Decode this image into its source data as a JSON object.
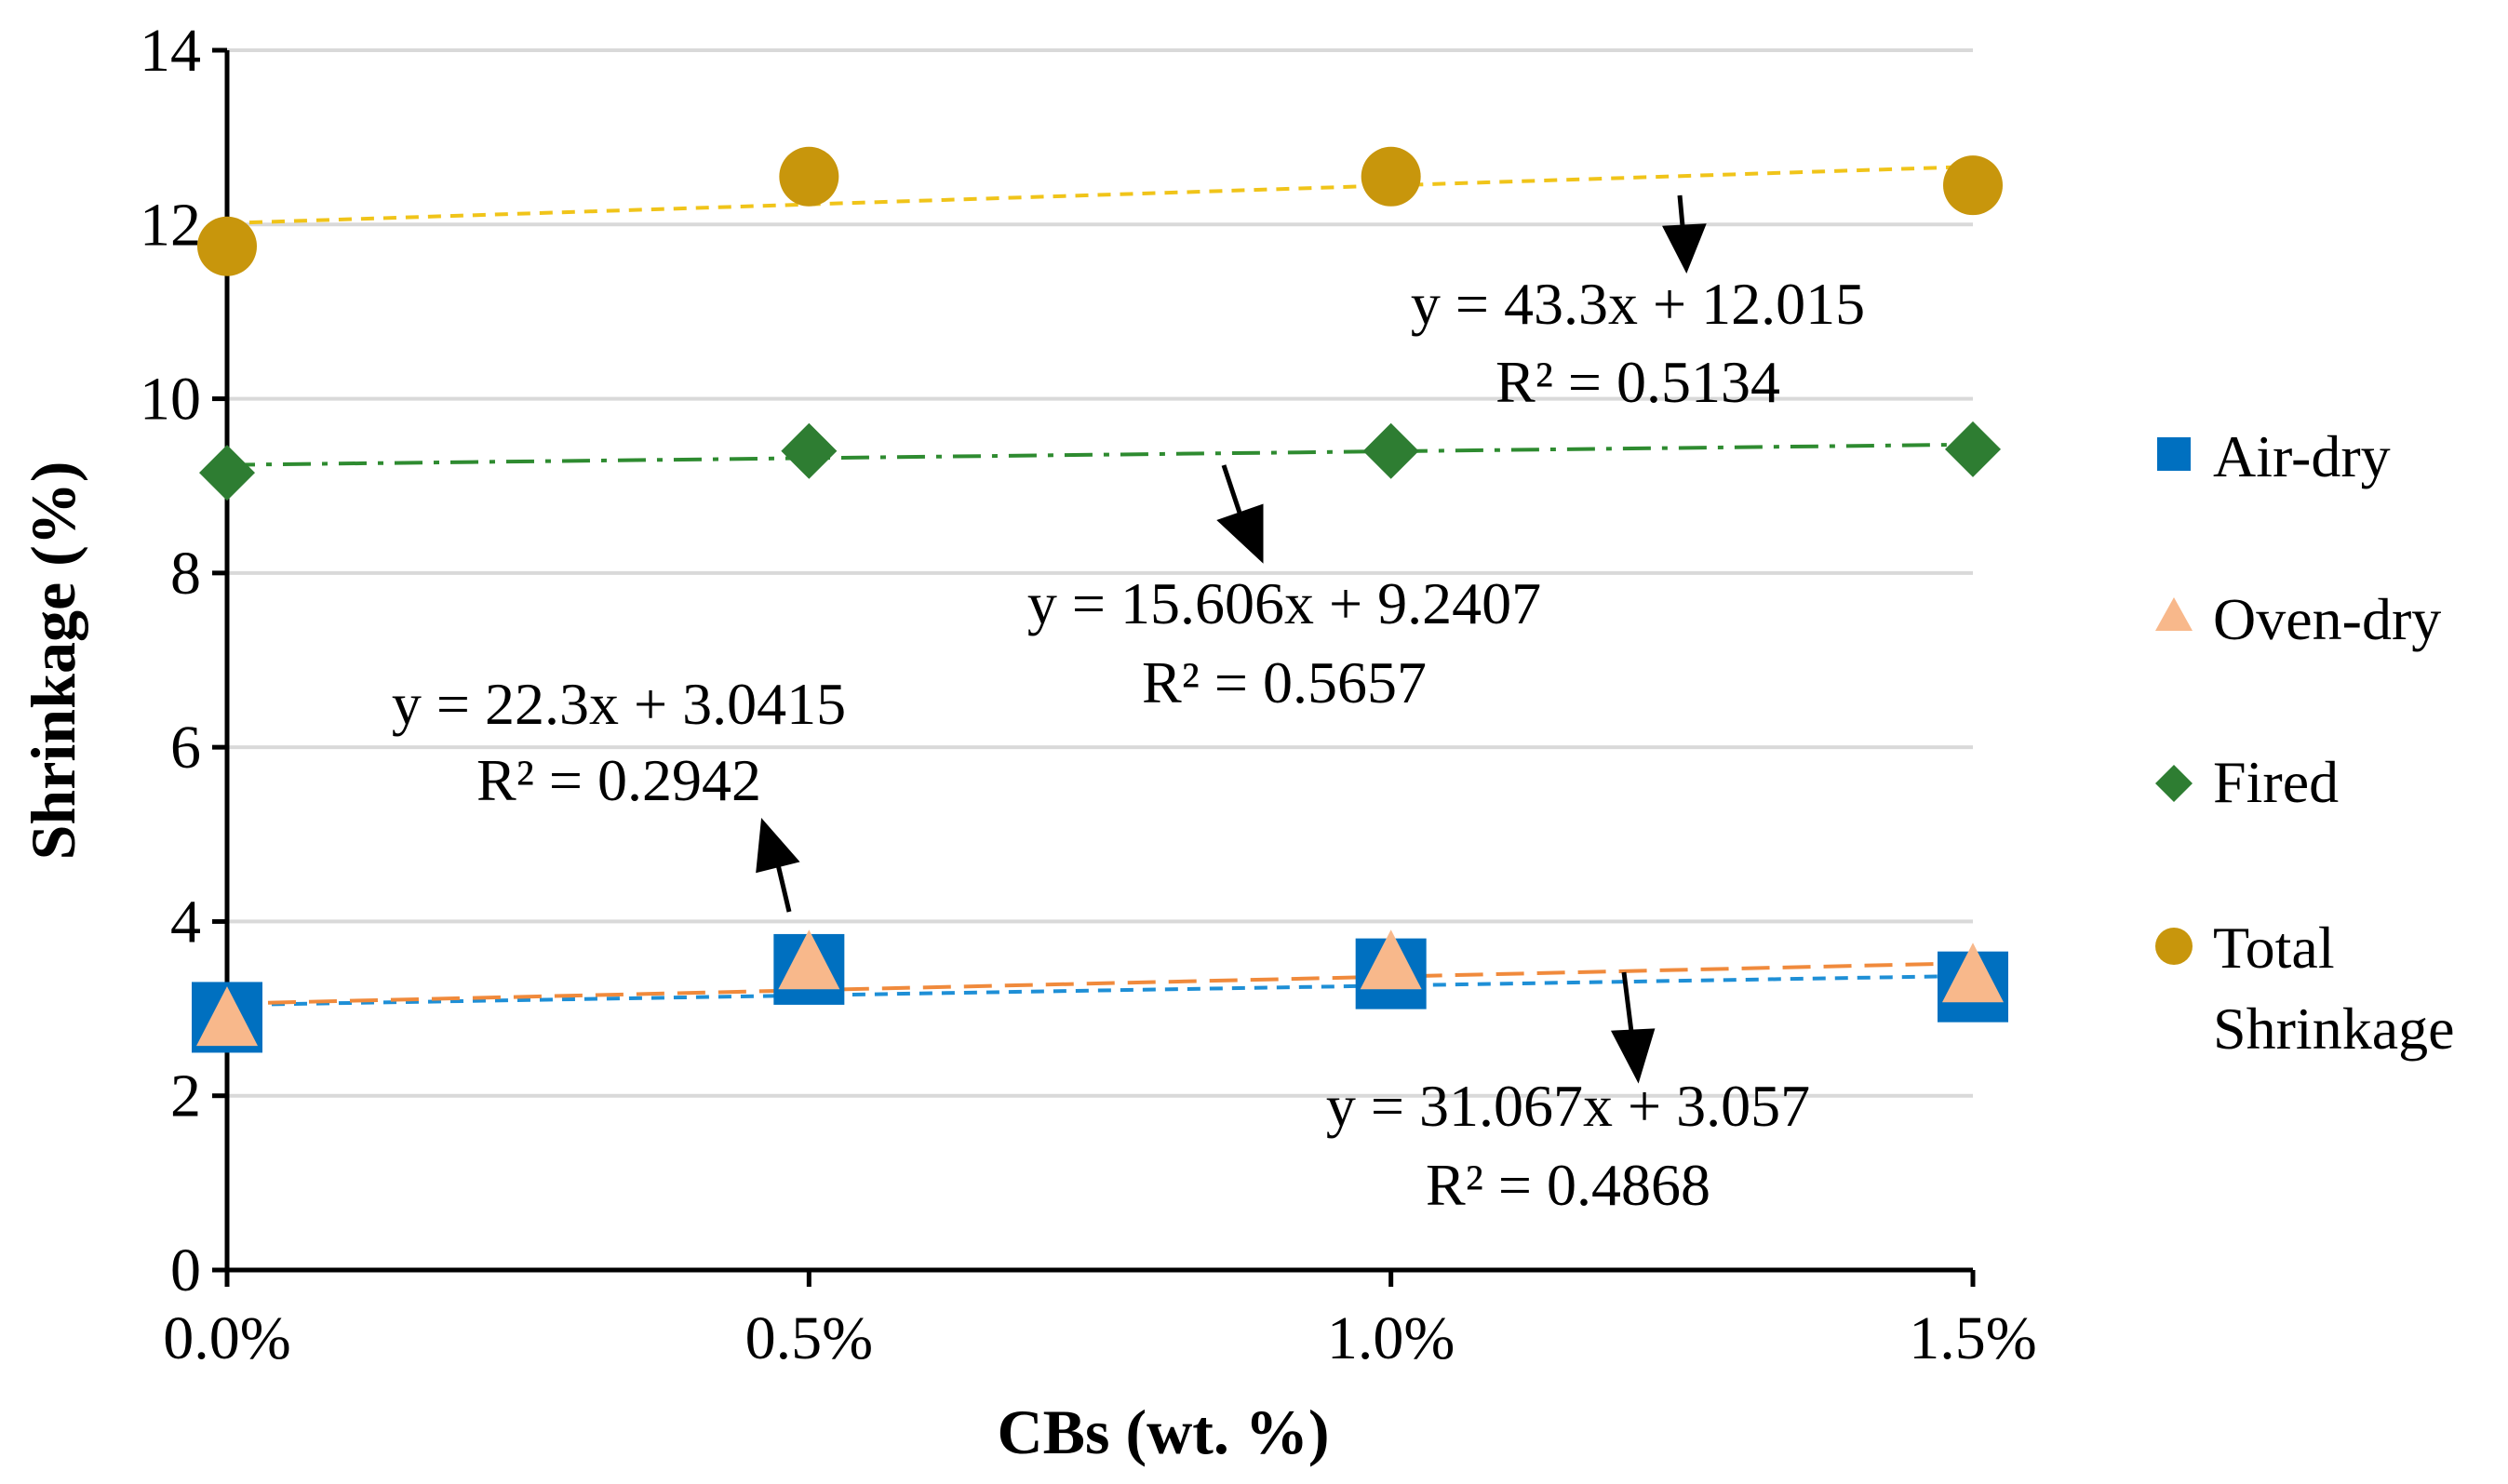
{
  "chart_data": {
    "type": "scatter",
    "title": "",
    "xlabel": "CBs (wt. %)",
    "ylabel": "Shrinkage (%)",
    "x": [
      0.0,
      0.005,
      0.01,
      0.015
    ],
    "x_tick_labels": [
      "0.0%",
      "0.5%",
      "1.0%",
      "1.5%"
    ],
    "xlim": [
      0.0,
      0.015
    ],
    "ylim": [
      0,
      14
    ],
    "y_ticks": [
      0,
      2,
      4,
      6,
      8,
      10,
      12,
      14
    ],
    "grid": "horizontal",
    "legend_position": "right",
    "series": [
      {
        "name": "Air-dry",
        "key": "air",
        "marker": "square",
        "color": "#0070c0",
        "values": [
          2.9,
          3.45,
          3.4,
          3.25
        ],
        "trend": {
          "slope": 22.3,
          "intercept": 3.0415,
          "color": "#1e8fd6",
          "dash": "short"
        }
      },
      {
        "name": "Oven-dry",
        "key": "oven",
        "marker": "triangle",
        "color": "#f8b88b",
        "values": [
          2.85,
          3.5,
          3.5,
          3.35
        ],
        "trend": {
          "slope": 31.067,
          "intercept": 3.057,
          "color": "#f08a3c",
          "dash": "long"
        }
      },
      {
        "name": "Fired",
        "key": "fired",
        "marker": "diamond",
        "color": "#2e7d32",
        "values": [
          9.15,
          9.4,
          9.4,
          9.42
        ],
        "trend": {
          "slope": 15.606,
          "intercept": 9.2407,
          "color": "#2e8b30",
          "dash": "dashdot"
        }
      },
      {
        "name": "Total Shrinkage",
        "key": "total",
        "marker": "circle",
        "color": "#c8960c",
        "values": [
          11.75,
          12.55,
          12.55,
          12.45
        ],
        "trend": {
          "slope": 43.3,
          "intercept": 12.015,
          "color": "#f0c419",
          "dash": "short"
        }
      }
    ],
    "annotations": [
      {
        "series": "air",
        "equation": "y = 22.3x + 3.0415",
        "r2": "R² = 0.2942"
      },
      {
        "series": "oven",
        "equation": "y = 31.067x + 3.057",
        "r2": "R² = 0.4868"
      },
      {
        "series": "fired",
        "equation": "y = 15.606x + 9.2407",
        "r2": "R² = 0.5657"
      },
      {
        "series": "total",
        "equation": "y = 43.3x + 12.015",
        "r2": "R² = 0.5134"
      }
    ],
    "legend": [
      "Air-dry",
      "Oven-dry",
      "Fired",
      "Total",
      "Shrinkage"
    ]
  }
}
